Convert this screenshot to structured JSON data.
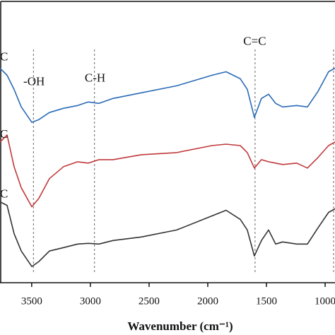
{
  "chart_data": {
    "type": "line",
    "xlabel": "Wavenumber (cm⁻¹)",
    "x": [
      3770,
      3710,
      3650,
      3589,
      3499,
      3439,
      3349,
      3228,
      3108,
      3018,
      2927,
      2807,
      2566,
      2265,
      1964,
      1844,
      1723,
      1663,
      1603,
      1543,
      1482,
      1422,
      1362,
      1242,
      1151,
      1061,
      971,
      916
    ],
    "series": [
      {
        "color": "#2a6bb5",
        "values": [
          305,
          295,
          275,
          250,
          228,
          232,
          242,
          248,
          252,
          257,
          255,
          262,
          270,
          280,
          295,
          300,
          290,
          275,
          235,
          262,
          268,
          255,
          250,
          252,
          250,
          272,
          300,
          305
        ]
      },
      {
        "color": "#c0393b",
        "values": [
          200,
          210,
          165,
          135,
          108,
          120,
          148,
          165,
          172,
          170,
          175,
          175,
          182,
          185,
          195,
          197,
          195,
          185,
          163,
          175,
          172,
          170,
          168,
          170,
          163,
          178,
          195,
          200
        ]
      },
      {
        "color": "#333333",
        "values": [
          115,
          110,
          70,
          45,
          23,
          30,
          45,
          50,
          55,
          56,
          55,
          60,
          65,
          75,
          95,
          103,
          90,
          75,
          38,
          60,
          75,
          55,
          58,
          55,
          55,
          78,
          100,
          105
        ]
      }
    ],
    "xlim": [
      3770,
      916
    ],
    "ylim": [
      0,
      400
    ],
    "xticks": [
      3500,
      3000,
      2500,
      2000,
      1500,
      1000
    ],
    "reference_lines": [
      3485,
      2965,
      1597,
      928
    ],
    "annotations": [
      {
        "text": "C",
        "x": 3770,
        "y": 320
      },
      {
        "text": "C",
        "x": 3770,
        "y": 210
      },
      {
        "text": "C",
        "x": 3770,
        "y": 125
      },
      {
        "text": "-OH",
        "x": 3480,
        "y": 285
      },
      {
        "text": "C-H",
        "x": 2960,
        "y": 290
      },
      {
        "text": "C=C",
        "x": 1600,
        "y": 342
      }
    ]
  }
}
